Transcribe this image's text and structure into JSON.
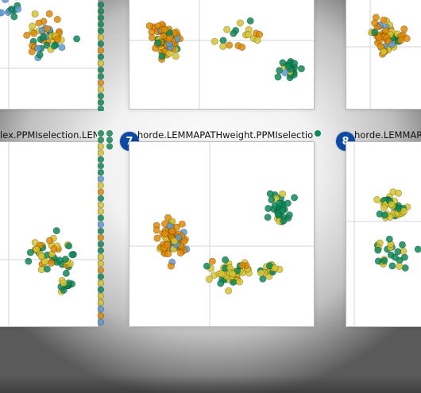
{
  "colors": {
    "orange": "#e08a00",
    "yellow": "#d8c42a",
    "green": "#0c8a57",
    "blue": "#5b9bd5",
    "badge": "#0a4aa6"
  },
  "panels": {
    "left_title": "lex.PPMIselection.LENG...",
    "center_badge": "7",
    "center_title": "horde.LEMMAPATHweight.PPMIselection.L...",
    "right_badge": "8",
    "right_title": "horde.LEMMARE"
  }
}
